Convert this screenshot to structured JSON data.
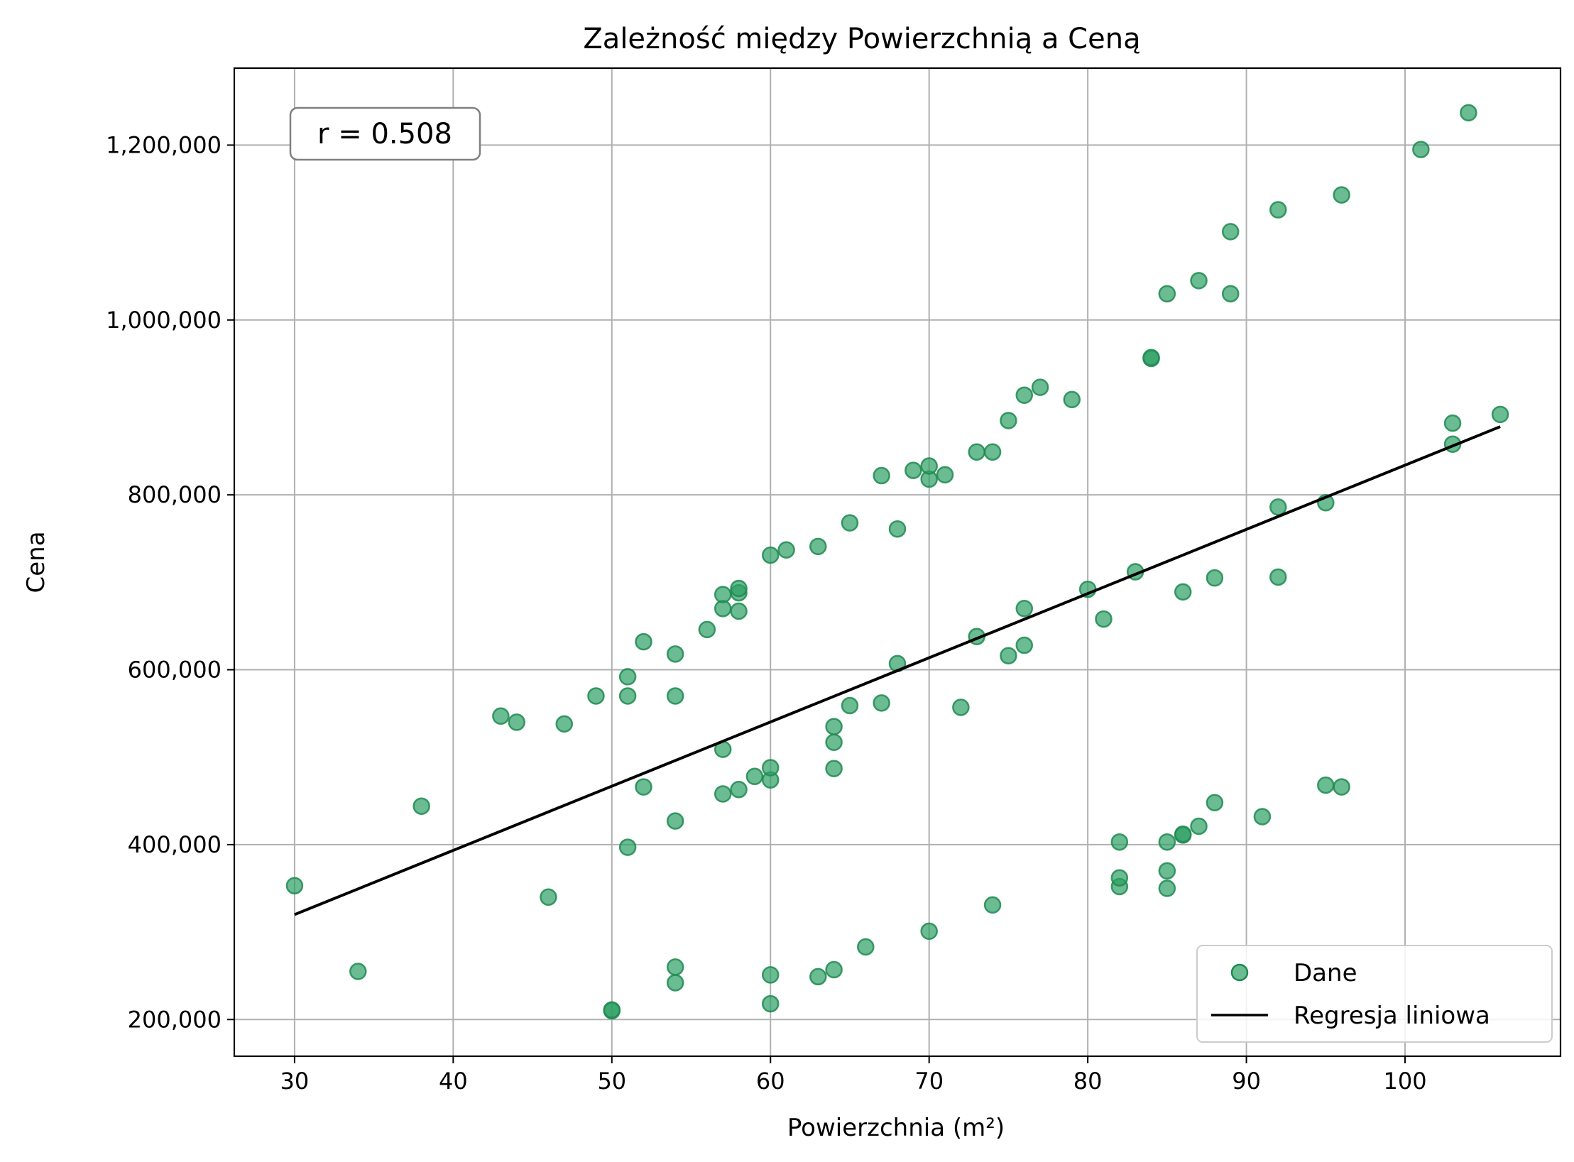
{
  "chart_data": {
    "type": "scatter",
    "title": "Zależność między Powierzchnią a Ceną",
    "xlabel": "Powierzchnia (m²)",
    "ylabel": "Cena",
    "xlim": [
      26.2,
      109.8
    ],
    "ylim": [
      158000,
      1288000
    ],
    "x_ticks": [
      30,
      40,
      50,
      60,
      70,
      80,
      90,
      100
    ],
    "y_ticks": [
      200000,
      400000,
      600000,
      800000,
      1000000,
      1200000
    ],
    "x_tick_labels": [
      "30",
      "40",
      "50",
      "60",
      "70",
      "80",
      "90",
      "100"
    ],
    "y_tick_labels": [
      "200,000",
      "400,000",
      "600,000",
      "800,000",
      "1,000,000",
      "1,200,000"
    ],
    "grid": true,
    "legend_position": "lower-right",
    "annotation": "r = 0.508",
    "series": [
      {
        "name": "Dane",
        "type": "scatter",
        "color": "#2ca064",
        "points": [
          [
            30,
            353000
          ],
          [
            34,
            255000
          ],
          [
            38,
            444000
          ],
          [
            43,
            547000
          ],
          [
            44,
            540000
          ],
          [
            46,
            340000
          ],
          [
            47,
            538000
          ],
          [
            49,
            570000
          ],
          [
            50,
            210000
          ],
          [
            50,
            211000
          ],
          [
            51,
            397000
          ],
          [
            51,
            570000
          ],
          [
            51,
            592000
          ],
          [
            52,
            466000
          ],
          [
            52,
            632000
          ],
          [
            54,
            242000
          ],
          [
            54,
            260000
          ],
          [
            54,
            427000
          ],
          [
            54,
            570000
          ],
          [
            54,
            618000
          ],
          [
            56,
            646000
          ],
          [
            57,
            458000
          ],
          [
            57,
            509000
          ],
          [
            57,
            670000
          ],
          [
            57,
            686000
          ],
          [
            58,
            463000
          ],
          [
            58,
            667000
          ],
          [
            58,
            688000
          ],
          [
            58,
            693000
          ],
          [
            59,
            478000
          ],
          [
            60,
            218000
          ],
          [
            60,
            251000
          ],
          [
            60,
            474000
          ],
          [
            60,
            488000
          ],
          [
            60,
            731000
          ],
          [
            61,
            737000
          ],
          [
            63,
            249000
          ],
          [
            63,
            741000
          ],
          [
            64,
            257000
          ],
          [
            64,
            487000
          ],
          [
            64,
            517000
          ],
          [
            64,
            535000
          ],
          [
            65,
            559000
          ],
          [
            65,
            768000
          ],
          [
            66,
            283000
          ],
          [
            67,
            562000
          ],
          [
            67,
            822000
          ],
          [
            68,
            607000
          ],
          [
            68,
            761000
          ],
          [
            69,
            828000
          ],
          [
            70,
            301000
          ],
          [
            70,
            818000
          ],
          [
            70,
            833000
          ],
          [
            71,
            823000
          ],
          [
            72,
            557000
          ],
          [
            73,
            638000
          ],
          [
            73,
            849000
          ],
          [
            74,
            331000
          ],
          [
            74,
            849000
          ],
          [
            75,
            616000
          ],
          [
            75,
            885000
          ],
          [
            76,
            628000
          ],
          [
            76,
            670000
          ],
          [
            76,
            914000
          ],
          [
            77,
            923000
          ],
          [
            79,
            909000
          ],
          [
            80,
            692000
          ],
          [
            81,
            658000
          ],
          [
            82,
            352000
          ],
          [
            82,
            362000
          ],
          [
            82,
            403000
          ],
          [
            83,
            712000
          ],
          [
            84,
            956000
          ],
          [
            84,
            957000
          ],
          [
            85,
            350000
          ],
          [
            85,
            370000
          ],
          [
            85,
            403000
          ],
          [
            85,
            1030000
          ],
          [
            86,
            411000
          ],
          [
            86,
            412000
          ],
          [
            86,
            689000
          ],
          [
            87,
            421000
          ],
          [
            87,
            1045000
          ],
          [
            88,
            448000
          ],
          [
            88,
            705000
          ],
          [
            89,
            1030000
          ],
          [
            89,
            1101000
          ],
          [
            91,
            432000
          ],
          [
            92,
            706000
          ],
          [
            92,
            786000
          ],
          [
            92,
            1126000
          ],
          [
            95,
            468000
          ],
          [
            95,
            791000
          ],
          [
            96,
            466000
          ],
          [
            96,
            1143000
          ],
          [
            101,
            1195000
          ],
          [
            103,
            858000
          ],
          [
            103,
            882000
          ],
          [
            104,
            1237000
          ],
          [
            106,
            892000
          ]
        ]
      },
      {
        "name": "Regresja liniowa",
        "type": "line",
        "color": "#000000",
        "points": [
          [
            30,
            320000
          ],
          [
            106,
            878000
          ]
        ]
      }
    ]
  }
}
